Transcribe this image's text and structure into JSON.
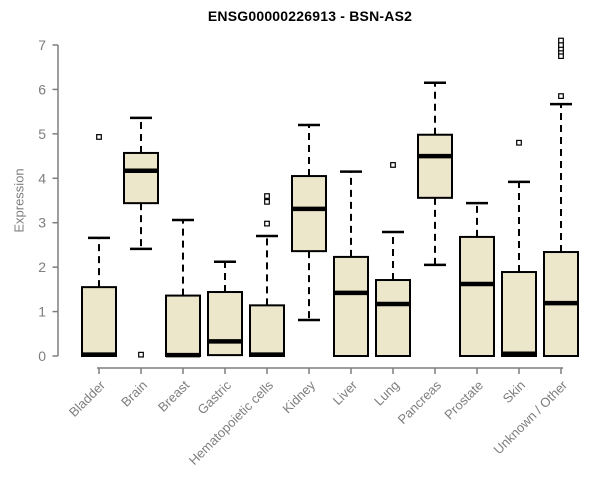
{
  "page": {
    "background": "#ffffff"
  },
  "chart_data": {
    "type": "boxplot",
    "title": "ENSG00000226913 - BSN-AS2",
    "ylabel": "Expression",
    "xlabel": "",
    "ylim": [
      0,
      7.2
    ],
    "yticks": [
      0,
      1,
      2,
      3,
      4,
      5,
      6,
      7
    ],
    "grid": false,
    "legend": null,
    "categories": [
      "Bladder",
      "Brain",
      "Breast",
      "Gastric",
      "Hematopoietic cells",
      "Kidney",
      "Liver",
      "Lung",
      "Pancreas",
      "Prostate",
      "Skin",
      "Unknown / Other"
    ],
    "boxes": [
      {
        "name": "Bladder",
        "whisker_low": 0,
        "q1": 0,
        "median": 0.03,
        "q3": 1.55,
        "whisker_high": 2.66,
        "outliers": [
          4.93
        ]
      },
      {
        "name": "Brain",
        "whisker_low": 2.41,
        "q1": 3.44,
        "median": 4.17,
        "q3": 4.57,
        "whisker_high": 5.36,
        "outliers": [
          0.03
        ]
      },
      {
        "name": "Breast",
        "whisker_low": 0,
        "q1": 0,
        "median": 0.02,
        "q3": 1.36,
        "whisker_high": 3.06,
        "outliers": []
      },
      {
        "name": "Gastric",
        "whisker_low": 0.02,
        "q1": 0.02,
        "median": 0.33,
        "q3": 1.44,
        "whisker_high": 2.12,
        "outliers": []
      },
      {
        "name": "Hematopoietic cells",
        "whisker_low": 0,
        "q1": 0,
        "median": 0.03,
        "q3": 1.14,
        "whisker_high": 2.7,
        "outliers": [
          2.98,
          3.47,
          3.6
        ]
      },
      {
        "name": "Kidney",
        "whisker_low": 0.81,
        "q1": 2.36,
        "median": 3.31,
        "q3": 4.05,
        "whisker_high": 5.2,
        "outliers": []
      },
      {
        "name": "Liver",
        "whisker_low": 0,
        "q1": 0,
        "median": 1.42,
        "q3": 2.23,
        "whisker_high": 4.15,
        "outliers": []
      },
      {
        "name": "Lung",
        "whisker_low": 0,
        "q1": 0,
        "median": 1.17,
        "q3": 1.71,
        "whisker_high": 2.79,
        "outliers": [
          4.3
        ]
      },
      {
        "name": "Pancreas",
        "whisker_low": 2.05,
        "q1": 3.56,
        "median": 4.5,
        "q3": 4.98,
        "whisker_high": 6.15,
        "outliers": []
      },
      {
        "name": "Prostate",
        "whisker_low": 0,
        "q1": 0,
        "median": 1.62,
        "q3": 2.68,
        "whisker_high": 3.44,
        "outliers": []
      },
      {
        "name": "Skin",
        "whisker_low": 0,
        "q1": 0,
        "median": 0.05,
        "q3": 1.89,
        "whisker_high": 3.92,
        "outliers": [
          4.8
        ]
      },
      {
        "name": "Unknown / Other",
        "whisker_low": 0,
        "q1": 0,
        "median": 1.19,
        "q3": 2.34,
        "whisker_high": 5.67,
        "outliers": [
          5.85,
          6.75,
          6.85,
          6.92,
          7.0,
          7.1
        ]
      }
    ],
    "colors": {
      "box_fill": "#ECE6CA",
      "box_border": "#000000",
      "median": "#000000",
      "whisker": "#000000",
      "outlier": "#000000",
      "axis": "#7e7e7e",
      "tick_label": "#7e7e7e",
      "title": "#000000"
    }
  }
}
